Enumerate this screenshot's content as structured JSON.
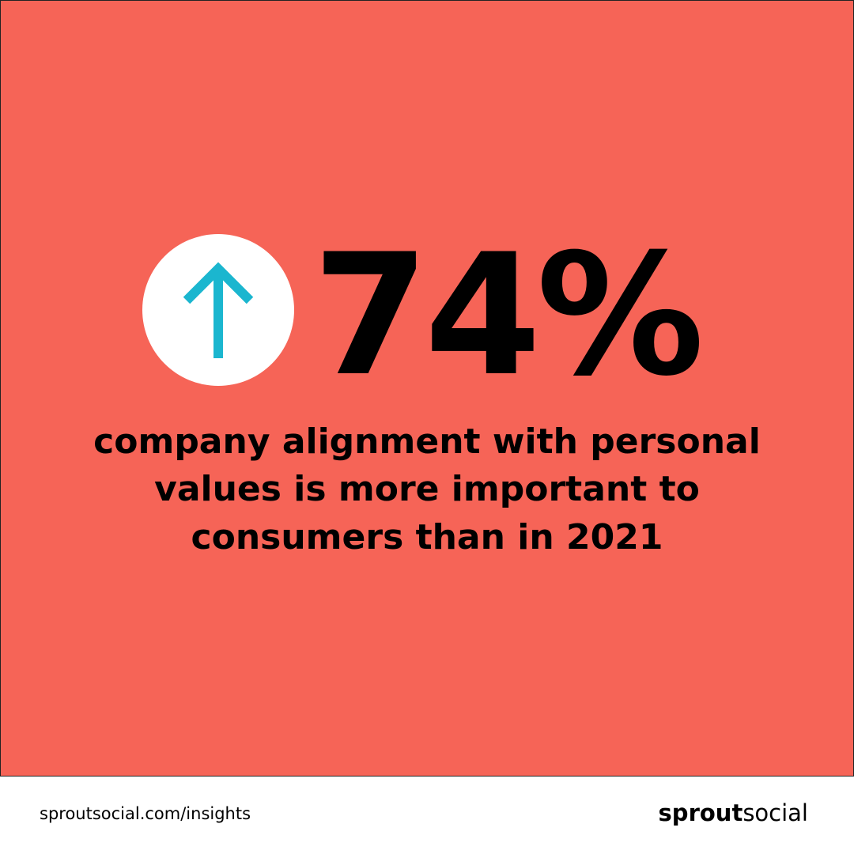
{
  "headline": {
    "stat": "74%",
    "lines": [
      "company alignment with personal",
      "values is more important to",
      "consumers than in 2021"
    ]
  },
  "footer": {
    "url": "sproutsocial.com/insights",
    "logo": {
      "bold": "sprout",
      "light": "social"
    }
  }
}
